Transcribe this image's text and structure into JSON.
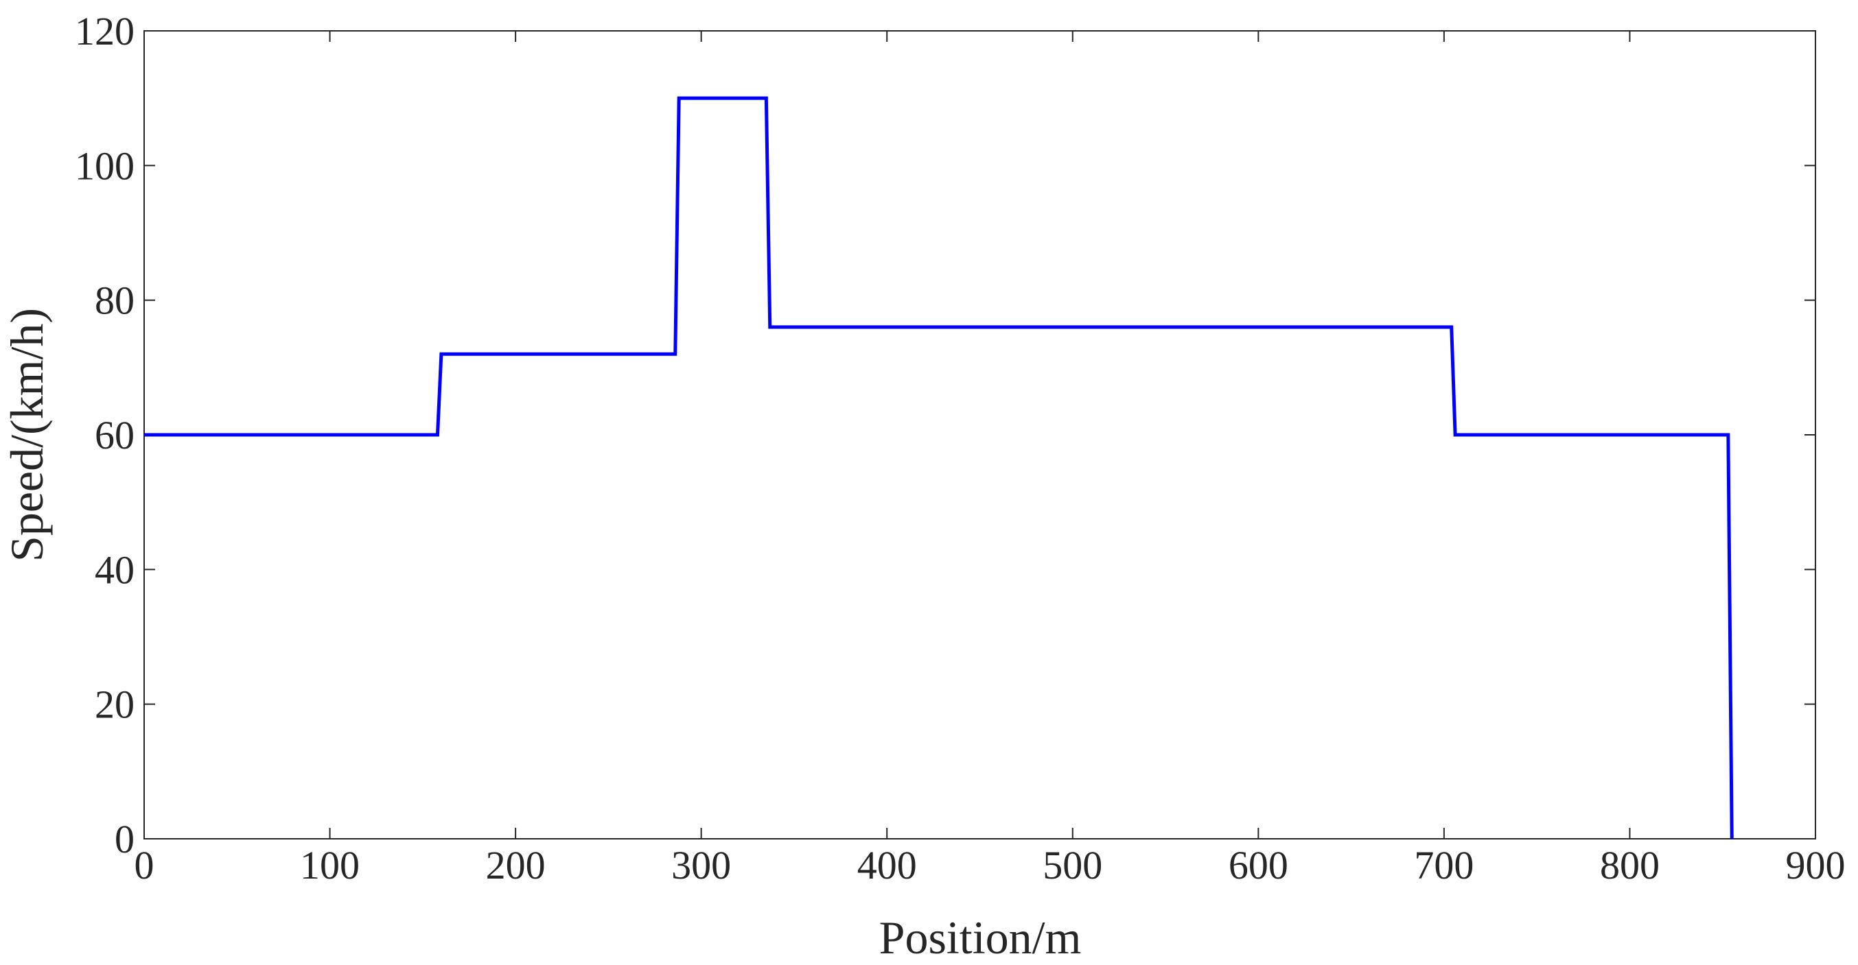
{
  "chart_data": {
    "type": "line",
    "x_label": "Position/m",
    "y_label": "Speed/(km/h)",
    "series": [
      {
        "color": "#0000ff",
        "x": [
          0,
          158,
          160,
          286,
          288,
          335,
          337,
          704,
          706,
          853,
          855
        ],
        "values": [
          60,
          60,
          72,
          72,
          110,
          110,
          76,
          76,
          60,
          60,
          0
        ]
      }
    ],
    "xlim": [
      0,
      900
    ],
    "xticks": [
      0,
      100,
      200,
      300,
      400,
      500,
      600,
      700,
      800,
      900
    ],
    "ylim": [
      0,
      120
    ],
    "yticks": [
      0,
      20,
      40,
      60,
      80,
      100,
      120
    ],
    "grid": false
  }
}
